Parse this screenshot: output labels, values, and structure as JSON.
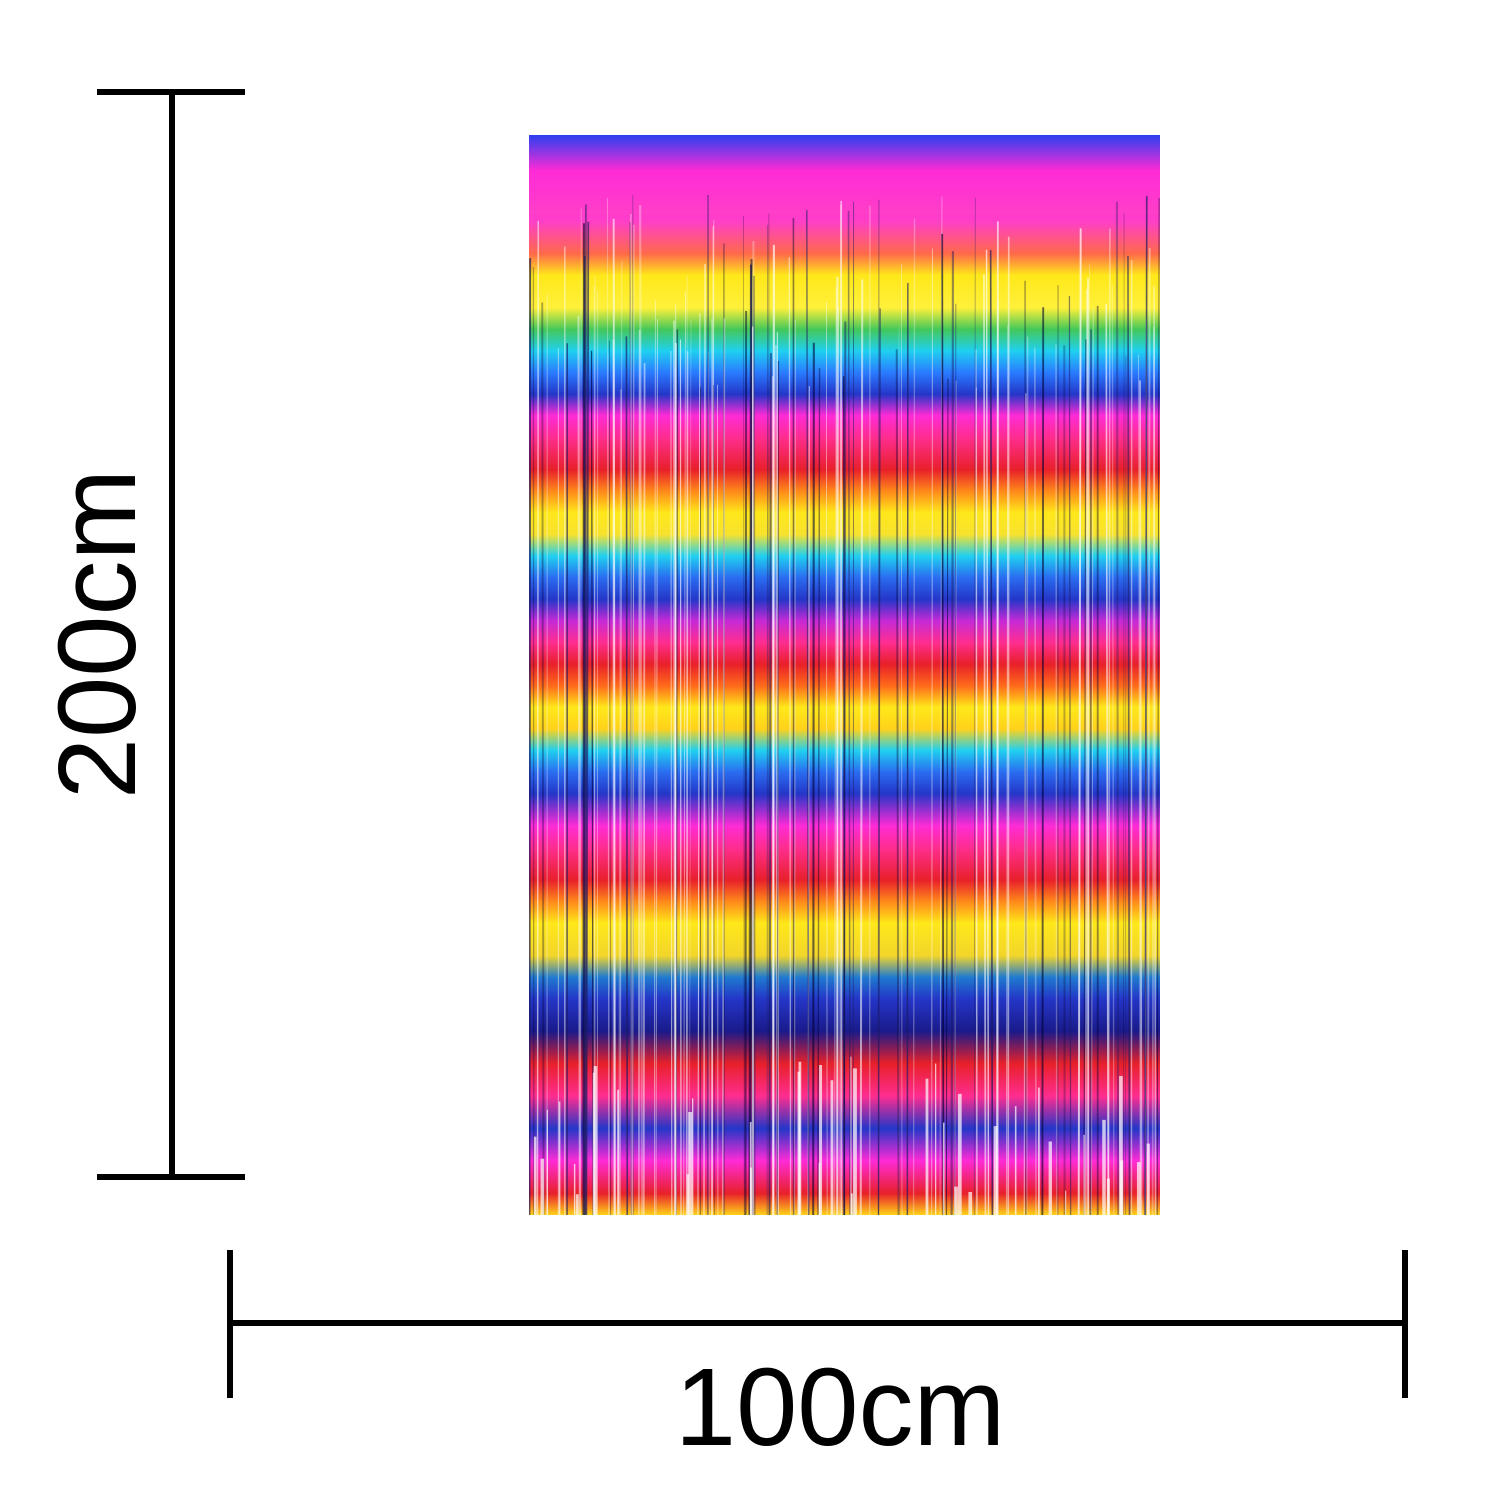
{
  "dimensions": {
    "height_label": "200cm",
    "width_label": "100cm"
  },
  "product": {
    "name": "curtain-image",
    "colors": [
      "#ff2bd6",
      "#ffe81a",
      "#1fd0f0",
      "#2436c8",
      "#ff2d8f",
      "#e8202a",
      "#ffffff"
    ]
  }
}
